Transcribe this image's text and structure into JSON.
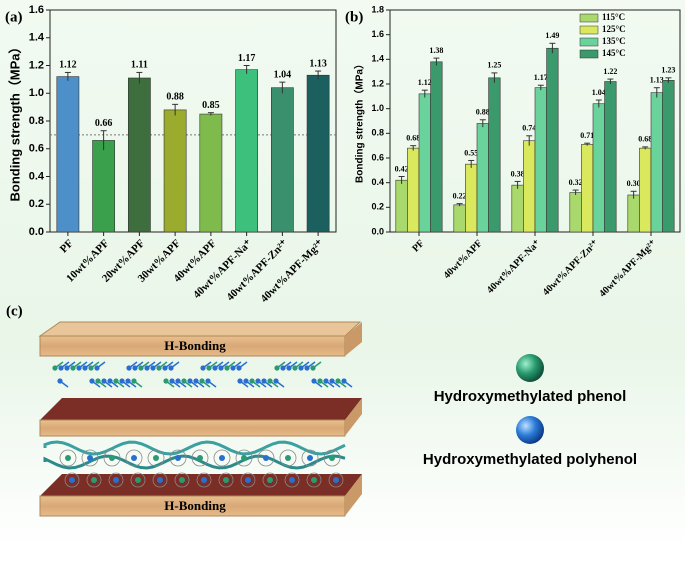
{
  "chart_data": [
    {
      "type": "bar",
      "panel": "(a)",
      "ylabel": "Bonding strength（MPa）",
      "categories": [
        "PF",
        "10wt%APF",
        "20wt%APF",
        "30wt%APF",
        "40wt%APF",
        "40wt%APF-Na⁺",
        "40wt%APF-Zn²⁺",
        "40wt%APF-Mg²⁺"
      ],
      "values": [
        1.12,
        0.66,
        1.11,
        0.88,
        0.85,
        1.17,
        1.04,
        1.13
      ],
      "errors": [
        0.03,
        0.07,
        0.04,
        0.04,
        0.01,
        0.03,
        0.04,
        0.03
      ],
      "colors": [
        "#4d8fc8",
        "#3aa04c",
        "#3e6e3e",
        "#9aab2e",
        "#7fbb4c",
        "#3cc07c",
        "#3a8f6c",
        "#1b5f5f"
      ],
      "reference_line": 0.7,
      "ylim": [
        0,
        1.6
      ],
      "yticks": [
        {
          "value": 0,
          "label": "0.0"
        },
        0.2,
        0.4,
        0.6,
        0.8,
        {
          "value": 1,
          "label": "1.0"
        },
        1.2,
        1.4,
        1.6
      ]
    },
    {
      "type": "bar",
      "panel": "(b)",
      "ylabel": "Bonding strength（MPa）",
      "categories": [
        "PF",
        "40wt%APF",
        "40wt%APF-Na⁺",
        "40wt%APF-Zn²⁺",
        "40wt%APF-Mg²⁺"
      ],
      "series": [
        {
          "name": "115°C",
          "color": "#a9d86c",
          "values": [
            0.42,
            0.22,
            0.38,
            0.32,
            0.3
          ],
          "value_labels": [
            "0.42",
            "0.22",
            "0.38",
            "0.32",
            "0.30"
          ],
          "errors": [
            0.03,
            0.01,
            0.03,
            0.02,
            0.03
          ]
        },
        {
          "name": "125°C",
          "color": "#d9e85c",
          "values": [
            0.68,
            0.55,
            0.74,
            0.71,
            0.68
          ],
          "errors": [
            0.02,
            0.03,
            0.04,
            0.01,
            0.01
          ]
        },
        {
          "name": "135°C",
          "color": "#6ad39c",
          "values": [
            1.12,
            0.88,
            1.17,
            1.04,
            1.13
          ],
          "errors": [
            0.03,
            0.03,
            0.02,
            0.03,
            0.04
          ]
        },
        {
          "name": "145°C",
          "color": "#3b9a6b",
          "values": [
            1.38,
            1.25,
            1.49,
            1.22,
            1.23
          ],
          "errors": [
            0.03,
            0.04,
            0.04,
            0.02,
            0.02
          ]
        }
      ],
      "legend": "upper left",
      "ylim": [
        0,
        1.8
      ],
      "yticks": [
        {
          "value": 0,
          "label": "0.0"
        },
        0.2,
        0.4,
        0.6,
        0.8,
        {
          "value": 1,
          "label": "1.0"
        },
        1.2,
        1.4,
        1.6,
        1.8
      ]
    }
  ],
  "diagram": {
    "label": "(c)",
    "top_board": "H-Bonding",
    "bottom_board": "H-Bonding",
    "legend": [
      {
        "label": "Hydroxymethylated phenol"
      },
      {
        "label": "Hydroxymethylated polyhenol"
      }
    ]
  }
}
